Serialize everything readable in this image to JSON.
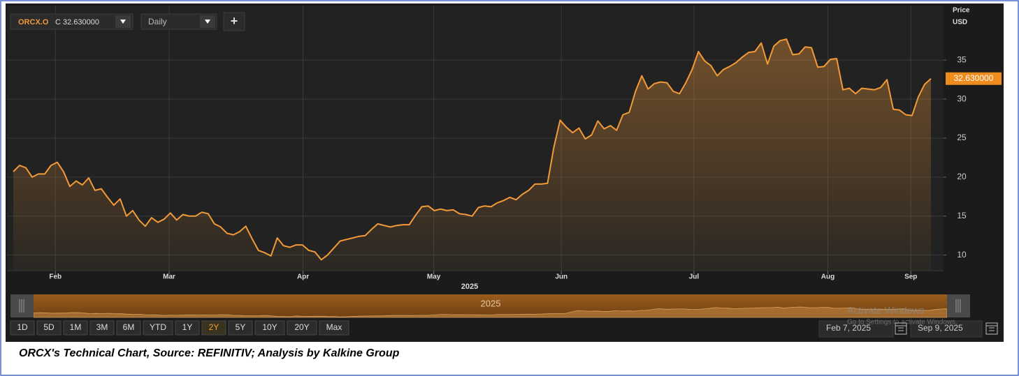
{
  "chart_data": {
    "type": "line",
    "symbol": "ORCX.O",
    "close_label": "C 32.630000",
    "interval": "Daily",
    "add_button": "+",
    "price_axis_title": "Price",
    "currency": "USD",
    "last_price_label": "32.630000",
    "x_axis_year": "2025",
    "navigator_year": "2025",
    "color": "#f39a38",
    "grid": true,
    "ylim": [
      8,
      42
    ],
    "yticks": [
      10,
      15,
      20,
      25,
      30,
      35
    ],
    "xlim": [
      -1,
      148
    ],
    "xticks": [
      {
        "value": 6.7,
        "label": "Feb"
      },
      {
        "value": 24.8,
        "label": "Mar"
      },
      {
        "value": 46.1,
        "label": "Apr"
      },
      {
        "value": 66.9,
        "label": "May"
      },
      {
        "value": 87.2,
        "label": "Jun"
      },
      {
        "value": 108.3,
        "label": "Jul"
      },
      {
        "value": 129.6,
        "label": "Aug"
      },
      {
        "value": 142.8,
        "label": "Sep"
      }
    ],
    "values": [
      20.7,
      21.5,
      21.2,
      20.0,
      20.4,
      20.4,
      21.5,
      21.9,
      20.7,
      18.8,
      19.5,
      19.0,
      19.9,
      18.3,
      18.5,
      17.4,
      16.4,
      17.2,
      15.0,
      15.7,
      14.5,
      13.7,
      14.8,
      14.2,
      14.6,
      15.4,
      14.5,
      15.2,
      15.0,
      15.0,
      15.5,
      15.3,
      14.0,
      13.6,
      12.8,
      12.6,
      13.0,
      13.7,
      12.1,
      10.6,
      10.3,
      9.9,
      12.2,
      11.2,
      11.0,
      11.3,
      11.3,
      10.6,
      10.4,
      9.4,
      10.0,
      10.9,
      11.8,
      12.0,
      12.2,
      12.4,
      12.5,
      13.3,
      14.0,
      13.8,
      13.6,
      13.8,
      13.9,
      13.9,
      15.1,
      16.2,
      16.3,
      15.7,
      15.9,
      15.7,
      15.8,
      15.3,
      15.2,
      15.0,
      16.1,
      16.3,
      16.2,
      16.7,
      17.0,
      17.4,
      17.1,
      17.8,
      18.3,
      19.1,
      19.1,
      19.2,
      23.8,
      27.3,
      26.4,
      25.7,
      26.3,
      24.9,
      25.4,
      27.2,
      26.2,
      26.6,
      26.0,
      28.0,
      28.3,
      31.0,
      33.0,
      31.3,
      32.0,
      32.2,
      32.1,
      31.0,
      30.7,
      32.1,
      33.8,
      36.1,
      34.9,
      34.3,
      33.0,
      33.8,
      34.2,
      34.7,
      35.4,
      36.0,
      36.1,
      37.2,
      34.5,
      36.8,
      37.5,
      37.7,
      35.7,
      35.8,
      36.7,
      36.6,
      34.1,
      34.2,
      35.1,
      35.2,
      31.2,
      31.4,
      30.7,
      31.4,
      31.3,
      31.2,
      31.5,
      32.5,
      28.7,
      28.6,
      28.0,
      27.9,
      30.3,
      31.9,
      32.63
    ],
    "range_buttons": [
      "1D",
      "5D",
      "1M",
      "3M",
      "6M",
      "YTD",
      "1Y",
      "2Y",
      "5Y",
      "10Y",
      "20Y",
      "Max"
    ],
    "selected_range": "2Y",
    "start_date": "Feb 7, 2025",
    "end_date": "Sep 9, 2025",
    "watermark_title": "Activate Windows",
    "watermark_text": "Go to Settings to activate Windows.",
    "caption": "ORCX's Technical Chart, Source: REFINITIV; Analysis by Kalkine Group"
  }
}
